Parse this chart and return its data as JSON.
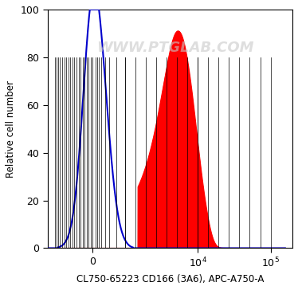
{
  "title": "WWW.PTGLAB.COM",
  "xlabel": "CL750-65223 CD166 (3A6), APC-A750-A",
  "ylabel": "Relative cell number",
  "ylim": [
    0,
    100
  ],
  "yticks": [
    0,
    20,
    40,
    60,
    80,
    100
  ],
  "background_color": "#ffffff",
  "plot_bg_color": "#ffffff",
  "blue_color": "#0000cc",
  "red_color": "#ff0000",
  "watermark_color": "#c8c8c8",
  "watermark_alpha": 0.6,
  "figsize": [
    3.74,
    3.64
  ],
  "dpi": 100,
  "linthresh": 1000,
  "linscale": 0.4
}
